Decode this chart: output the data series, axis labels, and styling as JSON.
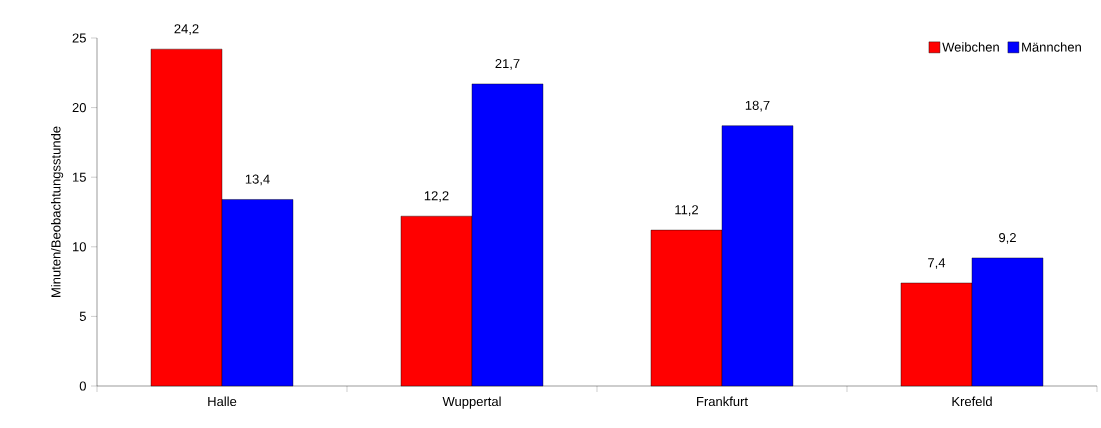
{
  "chart_data": {
    "type": "bar",
    "ylabel": "Minuten/Beobachtungsstunde",
    "categories": [
      "Halle",
      "Wuppertal",
      "Frankfurt",
      "Krefeld"
    ],
    "series": [
      {
        "name": "Weibchen",
        "color": "#ff0000",
        "values": [
          24.2,
          12.2,
          11.2,
          7.4
        ],
        "value_labels": [
          "24,2",
          "12,2",
          "11,2",
          "7,4"
        ]
      },
      {
        "name": "Männchen",
        "color": "#0000ff",
        "values": [
          13.4,
          21.7,
          18.7,
          9.2
        ],
        "value_labels": [
          "13,4",
          "21,7",
          "18,7",
          "9,2"
        ]
      }
    ],
    "ylim": [
      0,
      25
    ],
    "yticks": [
      0,
      5,
      10,
      15,
      20,
      25
    ],
    "grid": false,
    "legend": "top right"
  }
}
